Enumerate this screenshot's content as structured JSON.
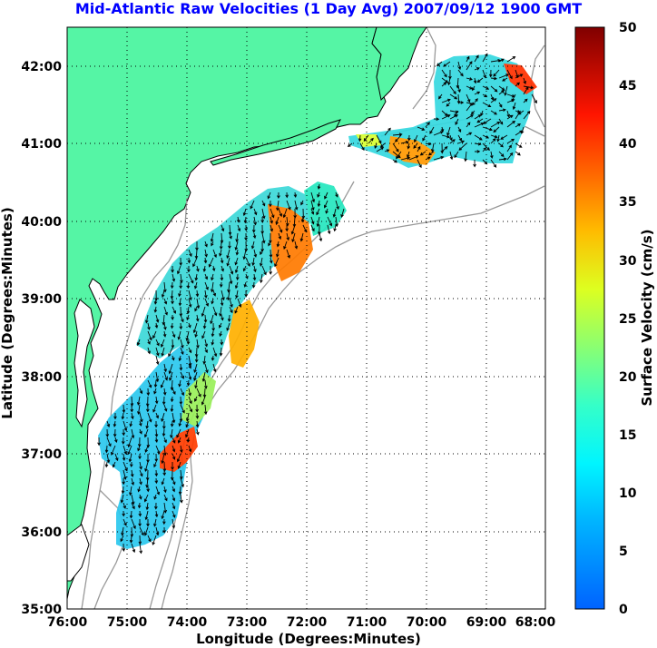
{
  "title": "Mid-Atlantic Raw Velocities (1 Day Avg) 2007/09/12 1900 GMT",
  "x_axis": {
    "label": "Longitude (Degrees:Minutes)",
    "ticks": [
      "76:00",
      "75:00",
      "74:00",
      "73:00",
      "72:00",
      "71:00",
      "70:00",
      "69:00",
      "68:00"
    ],
    "range": [
      -76,
      -68
    ]
  },
  "y_axis": {
    "label": "Latitude (Degrees:Minutes)",
    "ticks": [
      "35:00",
      "36:00",
      "37:00",
      "38:00",
      "39:00",
      "40:00",
      "41:00",
      "42:00"
    ],
    "range": [
      35,
      42.5
    ]
  },
  "colorbar": {
    "label": "Surface Velocity (cm/s)",
    "ticks": [
      "0",
      "5",
      "10",
      "15",
      "20",
      "25",
      "30",
      "35",
      "40",
      "45",
      "50"
    ],
    "range": [
      0,
      50
    ]
  },
  "colors": {
    "land": "#55f5a5",
    "ocean": "#ffffff",
    "title": "#0000ff",
    "coast": "#000000",
    "bathymetry": "#999999",
    "grid": "#000000"
  },
  "grid": "dotted"
}
